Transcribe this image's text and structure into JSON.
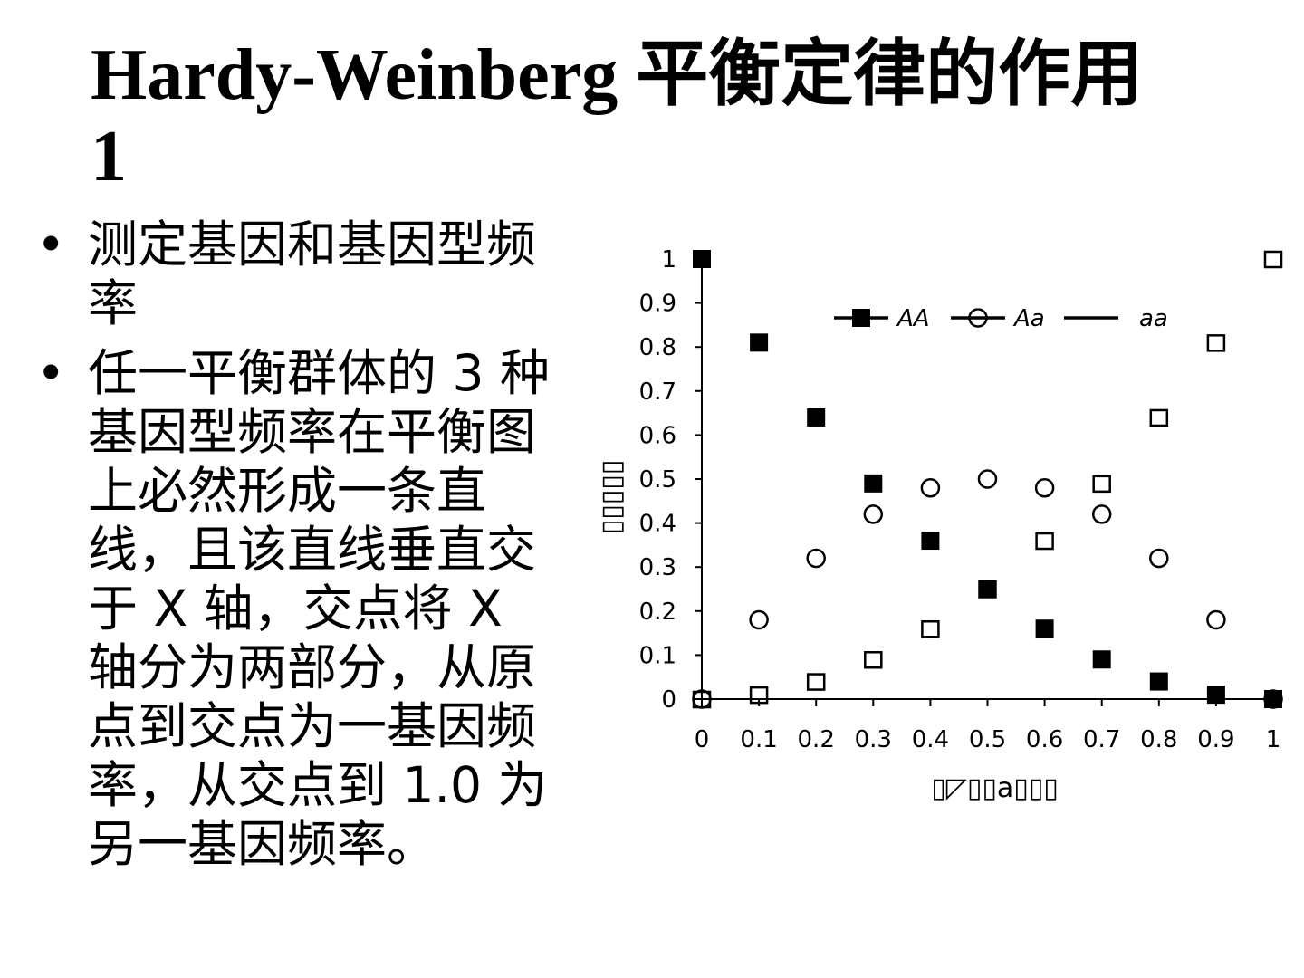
{
  "slide": {
    "title": "Hardy-Weinberg 平衡定律的作用 1",
    "bullets": [
      {
        "marker": "•",
        "text": "测定基因和基因型频率"
      },
      {
        "marker": "•",
        "text": "任一平衡群体的 3 种基因型频率在平衡图上必然形成一条直线，且该直线垂直交于 X 轴，交点将 X 轴分为两部分，从原点到交点为一基因频率，从交点到 1.0 为另一基因频率。"
      }
    ]
  },
  "chart_data": {
    "type": "scatter",
    "x": [
      0,
      0.1,
      0.2,
      0.3,
      0.4,
      0.5,
      0.6,
      0.7,
      0.8,
      0.9,
      1
    ],
    "series": [
      {
        "name": "AA",
        "marker": "filled-square",
        "values": [
          1,
          0.81,
          0.64,
          0.49,
          0.36,
          0.25,
          0.16,
          0.09,
          0.04,
          0.01,
          0
        ]
      },
      {
        "name": "Aa",
        "marker": "open-circle",
        "values": [
          0,
          0.18,
          0.32,
          0.42,
          0.48,
          0.5,
          0.48,
          0.42,
          0.32,
          0.18,
          0
        ]
      },
      {
        "name": "aa",
        "marker": "open-square",
        "values": [
          0,
          0.01,
          0.04,
          0.09,
          0.16,
          0.25,
          0.36,
          0.49,
          0.64,
          0.81,
          1
        ]
      }
    ],
    "xlim": [
      0,
      1
    ],
    "ylim": [
      0,
      1
    ],
    "xticks": [
      "0",
      "0.1",
      "0.2",
      "0.3",
      "0.4",
      "0.5",
      "0.6",
      "0.7",
      "0.8",
      "0.9",
      "1"
    ],
    "yticks": [
      "0",
      "0.1",
      "0.2",
      "0.3",
      "0.4",
      "0.5",
      "0.6",
      "0.7",
      "0.8",
      "0.9",
      "1"
    ],
    "xlabel": "▯◸▯▯a▯▯▯",
    "ylabel": "▯▯▯▯▯",
    "grid": false,
    "legend": "top"
  }
}
